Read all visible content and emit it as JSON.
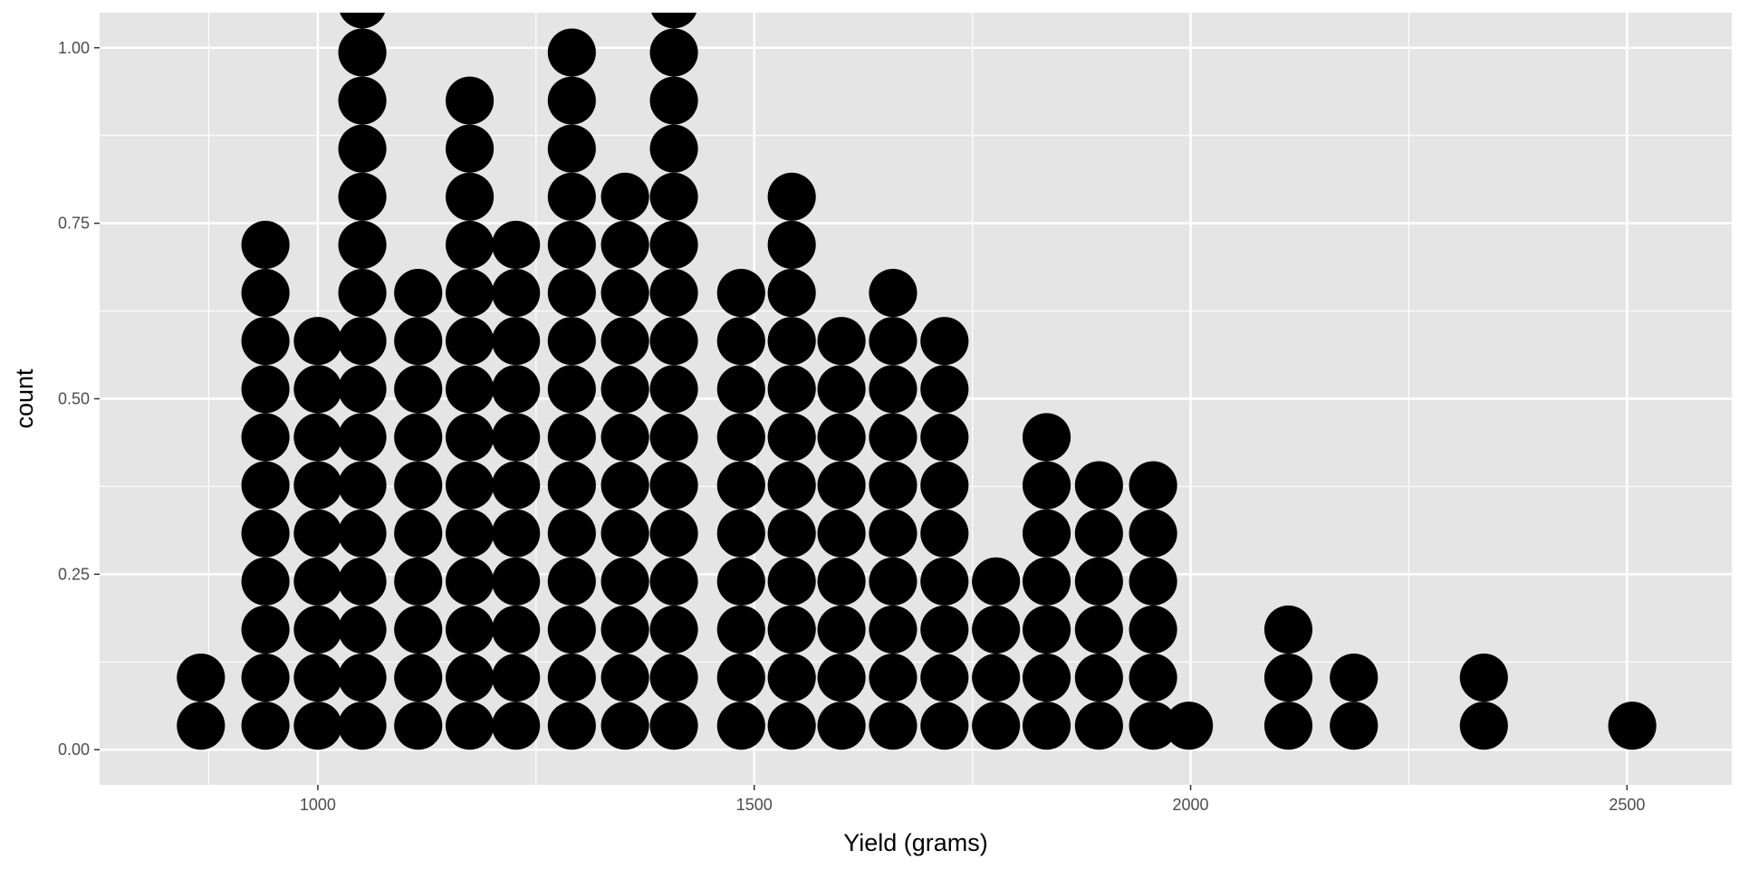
{
  "chart_data": {
    "type": "dotplot",
    "title": "",
    "xlabel": "Yield (grams)",
    "ylabel": "count",
    "xlim": [
      750,
      2620
    ],
    "ylim": [
      -0.05,
      1.05
    ],
    "x_ticks": [
      1000,
      1500,
      2000,
      2500
    ],
    "x_tick_labels": [
      "1000",
      "1500",
      "2000",
      "2500"
    ],
    "y_ticks": [
      0.0,
      0.25,
      0.5,
      0.75,
      1.0
    ],
    "y_tick_labels": [
      "0.00",
      "0.25",
      "0.50",
      "0.75",
      "1.00"
    ],
    "x_minor_ticks": [
      875,
      1250,
      1750,
      2250
    ],
    "y_minor_ticks": [
      0.125,
      0.375,
      0.625,
      0.875
    ],
    "grid": true,
    "legend": "none",
    "colors": {
      "panel_background": "#e5e5e5",
      "grid_line": "#ffffff",
      "dot": "#000000",
      "tick_label": "#4d4d4d",
      "axis_title": "#000000"
    },
    "dot_stack_step": 0.0685,
    "stacks": [
      {
        "x": 866,
        "count": 2
      },
      {
        "x": 940,
        "count": 11
      },
      {
        "x": 1000,
        "count": 9
      },
      {
        "x": 1051,
        "count": 16
      },
      {
        "x": 1115,
        "count": 10
      },
      {
        "x": 1174,
        "count": 14
      },
      {
        "x": 1227,
        "count": 11
      },
      {
        "x": 1291,
        "count": 15
      },
      {
        "x": 1352,
        "count": 12
      },
      {
        "x": 1408,
        "count": 16
      },
      {
        "x": 1485,
        "count": 10
      },
      {
        "x": 1543,
        "count": 12
      },
      {
        "x": 1600,
        "count": 9
      },
      {
        "x": 1659,
        "count": 10
      },
      {
        "x": 1718,
        "count": 9
      },
      {
        "x": 1777,
        "count": 4
      },
      {
        "x": 1835,
        "count": 7
      },
      {
        "x": 1895,
        "count": 6
      },
      {
        "x": 1957,
        "count": 6
      },
      {
        "x": 1998,
        "count": 1
      },
      {
        "x": 2112,
        "count": 3
      },
      {
        "x": 2187,
        "count": 2
      },
      {
        "x": 2336,
        "count": 2
      },
      {
        "x": 2506,
        "count": 1
      }
    ]
  }
}
